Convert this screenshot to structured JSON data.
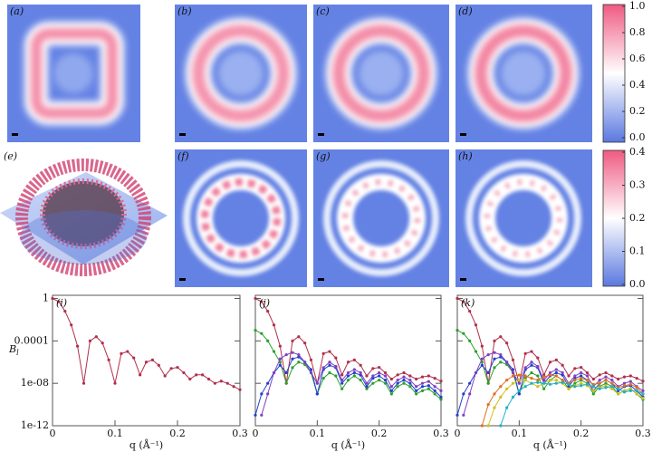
{
  "panel_labels": [
    "(a)",
    "(b)",
    "(c)",
    "(d)",
    "(e)",
    "(f)",
    "(g)",
    "(h)"
  ],
  "colorbars": [
    {
      "lim": [
        0,
        1
      ],
      "ticks": [
        {
          "value": 0,
          "label": "0.0"
        },
        0.2,
        0.4,
        0.6,
        0.8,
        {
          "value": 1,
          "label": "1.0"
        }
      ]
    },
    {
      "lim": [
        0,
        0.4
      ],
      "ticks": [
        {
          "value": 0,
          "label": "0.0"
        },
        0.1,
        0.2,
        0.3,
        0.4
      ]
    }
  ],
  "chart_data": [
    {
      "type": "line",
      "panel_label": "(i)",
      "y_label": "B",
      "y_label_sub": "l",
      "x_label": "q (Å⁻¹)",
      "log_y": true,
      "xlim": [
        0,
        0.3
      ],
      "ylim": [
        1e-12,
        2
      ],
      "xticks": [
        0,
        0.1,
        0.2,
        0.3
      ],
      "yticks": [
        1e-12,
        {
          "value": 1e-08,
          "label": "1e-08"
        },
        0.0001,
        1
      ],
      "x": [
        0,
        0.01,
        0.02,
        0.03,
        0.04,
        0.05,
        0.06,
        0.07,
        0.08,
        0.09,
        0.1,
        0.11,
        0.12,
        0.13,
        0.14,
        0.15,
        0.16,
        0.17,
        0.18,
        0.19,
        0.2,
        0.21,
        0.22,
        0.23,
        0.24,
        0.25,
        0.26,
        0.27,
        0.28,
        0.29,
        0.3
      ],
      "series": [
        {
          "color": "#b0304a",
          "values": [
            1,
            0.5,
            0.063,
            0.0032,
            3.2e-05,
            1e-08,
            0.0001,
            0.00025,
            6.3e-05,
            1.6e-06,
            1e-08,
            6.3e-06,
            1e-05,
            2.5e-06,
            6.3e-08,
            1e-06,
            1.6e-06,
            5e-07,
            5e-08,
            2.5e-07,
            3.2e-07,
            1e-07,
            2.5e-08,
            6.3e-08,
            6.3e-08,
            2.5e-08,
            1e-08,
            1.6e-08,
            1e-08,
            5e-09,
            2.5e-09
          ]
        }
      ]
    },
    {
      "type": "line",
      "panel_label": "(j)",
      "x_label": "q (Å⁻¹)",
      "log_y": true,
      "xlim": [
        0,
        0.3
      ],
      "ylim": [
        1e-12,
        2
      ],
      "xticks": [
        0,
        0.1,
        0.2,
        0.3
      ],
      "yticks": [
        1e-12,
        {
          "value": 1e-08,
          "label": "1e-08"
        },
        0.0001,
        1
      ],
      "x": [
        0,
        0.01,
        0.02,
        0.03,
        0.04,
        0.05,
        0.06,
        0.07,
        0.08,
        0.09,
        0.1,
        0.11,
        0.12,
        0.13,
        0.14,
        0.15,
        0.16,
        0.17,
        0.18,
        0.19,
        0.2,
        0.21,
        0.22,
        0.23,
        0.24,
        0.25,
        0.26,
        0.27,
        0.28,
        0.29,
        0.3
      ],
      "series": [
        {
          "color": "#b0304a",
          "values": [
            1,
            0.5,
            0.063,
            0.0032,
            3.2e-05,
            1e-08,
            0.0001,
            0.00025,
            6.3e-05,
            1.6e-06,
            1e-08,
            6.3e-06,
            1e-05,
            2.5e-06,
            6.3e-08,
            1e-06,
            1.6e-06,
            5e-07,
            5e-08,
            2.5e-07,
            3.2e-07,
            1e-07,
            2.5e-08,
            6.3e-08,
            1e-07,
            5e-08,
            2.5e-08,
            4e-08,
            5e-08,
            3e-08,
            1.6e-08
          ]
        },
        {
          "color": "#2ca02c",
          "values": [
            0.001,
            0.0005,
            0.0001,
            1e-05,
            1e-06,
            1e-08,
            3e-07,
            1e-06,
            6e-07,
            1e-07,
            1e-09,
            3e-08,
            1e-07,
            5e-08,
            3e-09,
            2e-08,
            5e-08,
            2e-08,
            3e-09,
            1e-08,
            2e-08,
            1e-08,
            1e-09,
            5e-09,
            1e-08,
            5e-09,
            1e-09,
            2e-09,
            3e-09,
            1e-09,
            3e-10
          ]
        },
        {
          "color": "#2040d0",
          "values": [
            1e-11,
            1e-09,
            1e-08,
            1e-07,
            5e-07,
            1e-07,
            2e-06,
            3e-06,
            1e-06,
            2e-07,
            1e-09,
            2e-07,
            5e-07,
            3e-07,
            1e-08,
            5e-08,
            1e-07,
            6e-08,
            5e-09,
            3e-08,
            5e-08,
            2e-08,
            2e-09,
            1e-08,
            2e-08,
            1e-08,
            2e-09,
            5e-09,
            6e-09,
            2e-09,
            5e-10
          ]
        },
        {
          "color": "#8040c0",
          "values": [
            null,
            1e-11,
            1e-09,
            1e-07,
            2e-06,
            5e-06,
            8e-06,
            5e-06,
            1e-06,
            1e-07,
            1e-08,
            3e-07,
            1e-06,
            4e-07,
            2e-08,
            1e-07,
            2e-07,
            1e-07,
            1e-08,
            5e-08,
            1e-07,
            5e-08,
            5e-09,
            2e-08,
            4e-08,
            2e-08,
            5e-09,
            1e-08,
            1.5e-08,
            5e-09,
            2e-09
          ]
        }
      ]
    },
    {
      "type": "line",
      "panel_label": "(k)",
      "x_label": "q (Å⁻¹)",
      "log_y": true,
      "xlim": [
        0,
        0.3
      ],
      "ylim": [
        1e-12,
        2
      ],
      "xticks": [
        0,
        0.1,
        0.2,
        0.3
      ],
      "yticks": [
        1e-12,
        {
          "value": 1e-08,
          "label": "1e-08"
        },
        0.0001,
        1
      ],
      "x": [
        0,
        0.01,
        0.02,
        0.03,
        0.04,
        0.05,
        0.06,
        0.07,
        0.08,
        0.09,
        0.1,
        0.11,
        0.12,
        0.13,
        0.14,
        0.15,
        0.16,
        0.17,
        0.18,
        0.19,
        0.2,
        0.21,
        0.22,
        0.23,
        0.24,
        0.25,
        0.26,
        0.27,
        0.28,
        0.29,
        0.3
      ],
      "series": [
        {
          "color": "#b0304a",
          "values": [
            1,
            0.5,
            0.063,
            0.0032,
            3.2e-05,
            1e-08,
            0.0001,
            0.00025,
            6.3e-05,
            1.6e-06,
            1e-08,
            6.3e-06,
            1e-05,
            2.5e-06,
            6.3e-08,
            1e-06,
            1.6e-06,
            5e-07,
            5e-08,
            2.5e-07,
            3.2e-07,
            1e-07,
            2.5e-08,
            6.3e-08,
            1e-07,
            5e-08,
            2.5e-08,
            4e-08,
            5e-08,
            3e-08,
            1.6e-08
          ]
        },
        {
          "color": "#2ca02c",
          "values": [
            0.001,
            0.0005,
            0.0001,
            1e-05,
            1e-06,
            1e-08,
            3e-07,
            1e-06,
            6e-07,
            1e-07,
            1e-09,
            3e-08,
            1e-07,
            5e-08,
            3e-09,
            2e-08,
            5e-08,
            2e-08,
            3e-09,
            1e-08,
            2e-08,
            1e-08,
            1e-09,
            5e-09,
            1e-08,
            5e-09,
            1e-09,
            2e-09,
            3e-09,
            1e-09,
            3e-10
          ]
        },
        {
          "color": "#2040d0",
          "values": [
            1e-11,
            1e-09,
            1e-08,
            1e-07,
            5e-07,
            1e-07,
            2e-06,
            3e-06,
            1e-06,
            2e-07,
            1e-09,
            2e-07,
            5e-07,
            3e-07,
            1e-08,
            5e-08,
            1e-07,
            6e-08,
            5e-09,
            3e-08,
            5e-08,
            2e-08,
            2e-09,
            1e-08,
            2e-08,
            1e-08,
            2e-09,
            5e-09,
            6e-09,
            2e-09,
            5e-10
          ]
        },
        {
          "color": "#8040c0",
          "values": [
            null,
            1e-11,
            1e-09,
            1e-07,
            2e-06,
            5e-06,
            8e-06,
            5e-06,
            1e-06,
            1e-07,
            1e-08,
            3e-07,
            1e-06,
            4e-07,
            2e-08,
            1e-07,
            2e-07,
            1e-07,
            1e-08,
            5e-08,
            1e-07,
            5e-08,
            5e-09,
            2e-08,
            4e-08,
            2e-08,
            5e-09,
            1e-08,
            1.5e-08,
            5e-09,
            2e-09
          ]
        },
        {
          "color": "#e07020",
          "values": [
            null,
            null,
            null,
            null,
            1e-12,
            1e-10,
            1e-09,
            5e-09,
            2e-08,
            5e-08,
            6e-08,
            5e-08,
            3e-08,
            2e-08,
            4e-08,
            6e-08,
            5e-08,
            2e-08,
            1e-08,
            2e-08,
            3e-08,
            2e-08,
            8e-09,
            1e-08,
            2e-08,
            1e-08,
            4e-09,
            6e-09,
            8e-09,
            4e-09,
            1e-09
          ]
        },
        {
          "color": "#d0c020",
          "values": [
            null,
            null,
            null,
            null,
            null,
            1e-12,
            5e-11,
            5e-10,
            3e-09,
            1e-08,
            2e-08,
            2e-08,
            1e-08,
            5e-09,
            1e-08,
            2e-08,
            2e-08,
            1e-08,
            3e-09,
            6e-09,
            1e-08,
            6e-09,
            2e-09,
            4e-09,
            6e-09,
            3e-09,
            1e-09,
            2e-09,
            3e-09,
            1e-09,
            4e-10
          ]
        },
        {
          "color": "#20b0c0",
          "values": [
            null,
            null,
            null,
            null,
            null,
            null,
            null,
            1e-12,
            5e-11,
            5e-10,
            2e-09,
            5e-09,
            1e-08,
            1.2e-08,
            1e-08,
            8e-09,
            1e-08,
            1.2e-08,
            8e-09,
            5e-09,
            6e-09,
            8e-09,
            5e-09,
            3e-09,
            4e-09,
            5e-09,
            3e-09,
            1.5e-09,
            2e-09,
            2e-09,
            1e-09
          ]
        }
      ]
    }
  ]
}
